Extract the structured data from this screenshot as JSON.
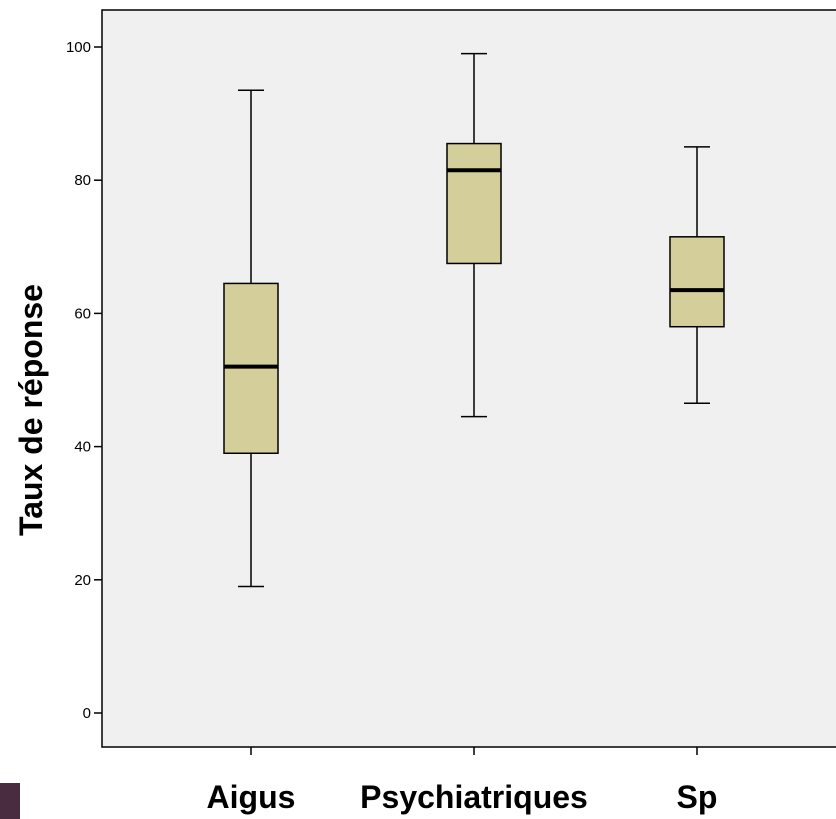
{
  "chart_data": {
    "type": "boxplot",
    "title": "",
    "xlabel": "",
    "ylabel": "Taux de réponse",
    "ylim": [
      0,
      100
    ],
    "yticks": [
      0,
      20,
      40,
      60,
      80,
      100
    ],
    "categories": [
      "Aigus",
      "Psychiatriques",
      "Sp"
    ],
    "boxes": [
      {
        "category": "Aigus",
        "min": 19,
        "q1": 39,
        "median": 52,
        "q3": 64.5,
        "max": 93.5
      },
      {
        "category": "Psychiatriques",
        "min": 44.5,
        "q1": 67.5,
        "median": 81.5,
        "q3": 85.5,
        "max": 99
      },
      {
        "category": "Sp",
        "min": 46.5,
        "q1": 58,
        "median": 63.5,
        "q3": 71.5,
        "max": 85
      }
    ],
    "grid": false,
    "colors": {
      "plot_background": "#f0f0f0",
      "box_fill": "#d4cf9a",
      "stroke": "#000000"
    }
  },
  "decor": {
    "corner_block_color": "#4a2c40"
  }
}
